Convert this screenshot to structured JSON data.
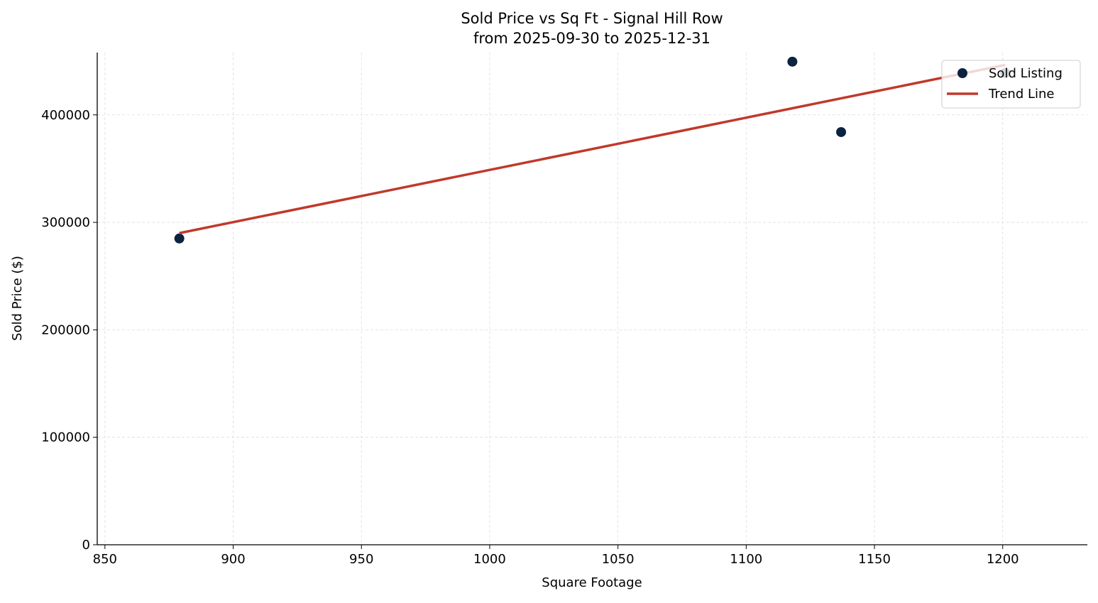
{
  "chart_data": {
    "type": "scatter",
    "title": "Sold Price vs Sq Ft - Signal Hill Row",
    "subtitle": "from 2025-09-30 to 2025-12-31",
    "xlabel": "Square Footage",
    "ylabel": "Sold Price ($)",
    "xlim": [
      847,
      1233
    ],
    "ylim": [
      0,
      458000
    ],
    "xticks": [
      850,
      900,
      950,
      1000,
      1050,
      1100,
      1150,
      1200
    ],
    "yticks": [
      0,
      100000,
      200000,
      300000,
      400000
    ],
    "grid": true,
    "legend_position": "top-right",
    "series": [
      {
        "name": "Sold Listing",
        "kind": "scatter",
        "color": "#0b2341",
        "points": [
          [
            879,
            285000
          ],
          [
            1118,
            449500
          ],
          [
            1137,
            384000
          ],
          [
            1201,
            439000
          ]
        ]
      },
      {
        "name": "Trend Line",
        "kind": "line",
        "color": "#c0392b",
        "points": [
          [
            879,
            290000
          ],
          [
            1201,
            446500
          ]
        ]
      }
    ]
  }
}
